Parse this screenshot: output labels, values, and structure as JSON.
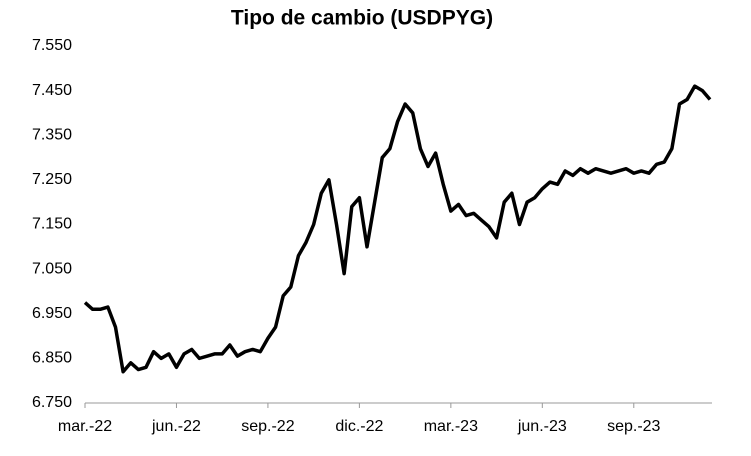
{
  "chart_data": {
    "type": "line",
    "title": "Tipo de cambio (USDPYG)",
    "categories": [
      "mar.-22",
      null,
      null,
      null,
      null,
      null,
      null,
      null,
      null,
      null,
      null,
      null,
      "jun.-22",
      null,
      null,
      null,
      null,
      null,
      null,
      null,
      null,
      null,
      null,
      null,
      "sep.-22",
      null,
      null,
      null,
      null,
      null,
      null,
      null,
      null,
      null,
      null,
      null,
      "dic.-22",
      null,
      null,
      null,
      null,
      null,
      null,
      null,
      null,
      null,
      null,
      null,
      "mar.-23",
      null,
      null,
      null,
      null,
      null,
      null,
      null,
      null,
      null,
      null,
      null,
      "jun.-23",
      null,
      null,
      null,
      null,
      null,
      null,
      null,
      null,
      null,
      null,
      null,
      "sep.-23",
      null,
      null,
      null,
      null,
      null,
      null,
      null,
      null,
      null,
      null
    ],
    "series": [
      {
        "name": "USDPYG",
        "color": "#000000",
        "values": [
          6975,
          6960,
          6960,
          6965,
          6920,
          6820,
          6840,
          6825,
          6830,
          6865,
          6850,
          6860,
          6830,
          6860,
          6870,
          6850,
          6855,
          6860,
          6860,
          6880,
          6855,
          6865,
          6870,
          6865,
          6895,
          6920,
          6990,
          7010,
          7080,
          7110,
          7150,
          7220,
          7250,
          7150,
          7040,
          7190,
          7210,
          7100,
          7200,
          7300,
          7320,
          7380,
          7420,
          7400,
          7320,
          7280,
          7310,
          7240,
          7180,
          7195,
          7170,
          7175,
          7160,
          7145,
          7120,
          7200,
          7220,
          7150,
          7200,
          7210,
          7230,
          7245,
          7240,
          7270,
          7260,
          7275,
          7265,
          7275,
          7270,
          7265,
          7270,
          7275,
          7265,
          7270,
          7265,
          7285,
          7290,
          7320,
          7420,
          7430,
          7460,
          7450,
          7430
        ]
      }
    ],
    "ylim": [
      6750,
      7550
    ],
    "yticks": [
      {
        "value": 6750,
        "label": "6.750"
      },
      {
        "value": 6850,
        "label": "6.850"
      },
      {
        "value": 6950,
        "label": "6.950"
      },
      {
        "value": 7050,
        "label": "7.050"
      },
      {
        "value": 7150,
        "label": "7.150"
      },
      {
        "value": 7250,
        "label": "7.250"
      },
      {
        "value": 7350,
        "label": "7.350"
      },
      {
        "value": 7450,
        "label": "7.450"
      },
      {
        "value": 7550,
        "label": "7.550"
      }
    ],
    "grid": false
  }
}
